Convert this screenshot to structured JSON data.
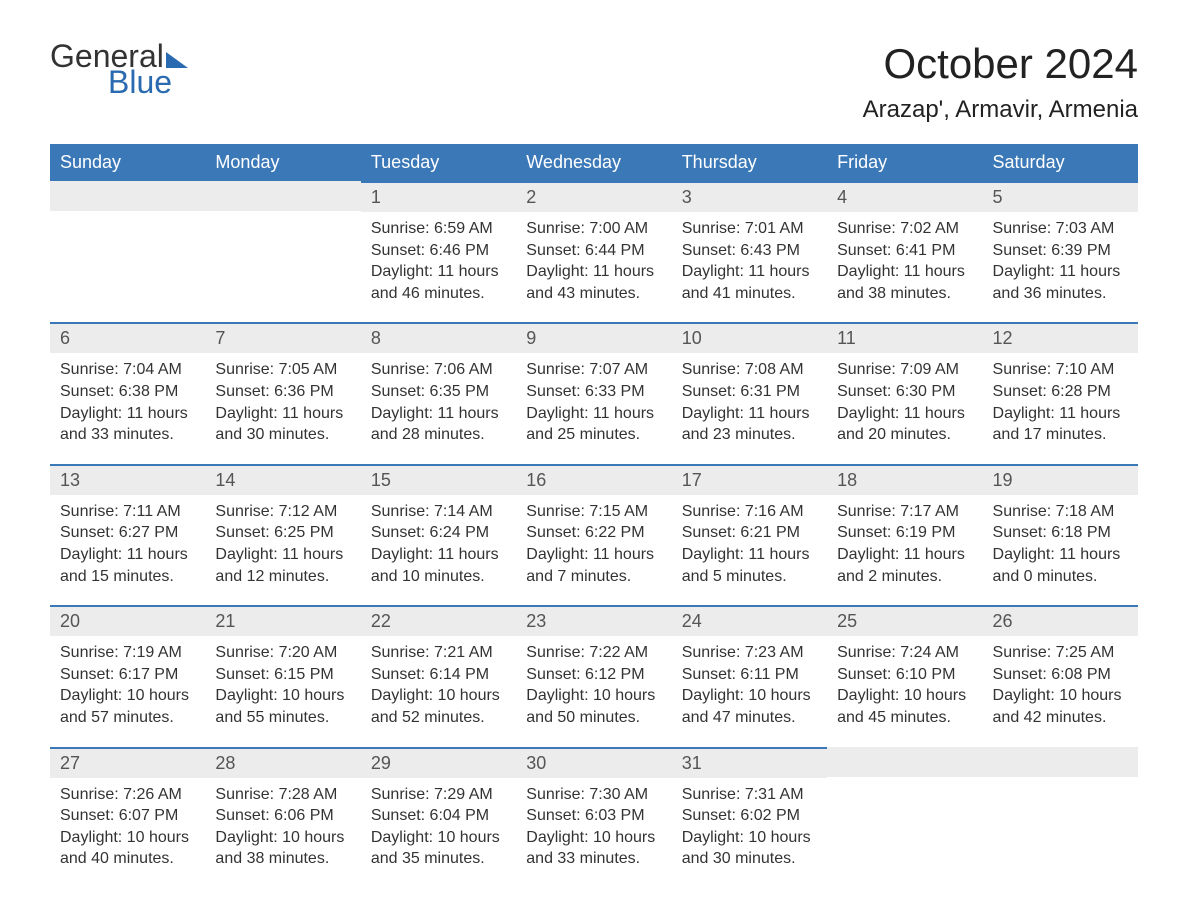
{
  "logo": {
    "word1": "General",
    "word2": "Blue"
  },
  "title": "October 2024",
  "location": "Arazap', Armavir, Armenia",
  "colors": {
    "accent": "#3b78b8",
    "header_bg": "#3b78b8",
    "header_text": "#ffffff",
    "daynum_bg": "#ececec",
    "daynum_text": "#555555",
    "body_text": "#333333",
    "background": "#ffffff"
  },
  "typography": {
    "title_fontsize": 42,
    "location_fontsize": 24,
    "header_fontsize": 18,
    "daynum_fontsize": 18,
    "body_fontsize": 16
  },
  "weekday_headers": [
    "Sunday",
    "Monday",
    "Tuesday",
    "Wednesday",
    "Thursday",
    "Friday",
    "Saturday"
  ],
  "weeks": [
    [
      null,
      null,
      {
        "n": "1",
        "sunrise": "Sunrise: 6:59 AM",
        "sunset": "Sunset: 6:46 PM",
        "dl1": "Daylight: 11 hours",
        "dl2": "and 46 minutes."
      },
      {
        "n": "2",
        "sunrise": "Sunrise: 7:00 AM",
        "sunset": "Sunset: 6:44 PM",
        "dl1": "Daylight: 11 hours",
        "dl2": "and 43 minutes."
      },
      {
        "n": "3",
        "sunrise": "Sunrise: 7:01 AM",
        "sunset": "Sunset: 6:43 PM",
        "dl1": "Daylight: 11 hours",
        "dl2": "and 41 minutes."
      },
      {
        "n": "4",
        "sunrise": "Sunrise: 7:02 AM",
        "sunset": "Sunset: 6:41 PM",
        "dl1": "Daylight: 11 hours",
        "dl2": "and 38 minutes."
      },
      {
        "n": "5",
        "sunrise": "Sunrise: 7:03 AM",
        "sunset": "Sunset: 6:39 PM",
        "dl1": "Daylight: 11 hours",
        "dl2": "and 36 minutes."
      }
    ],
    [
      {
        "n": "6",
        "sunrise": "Sunrise: 7:04 AM",
        "sunset": "Sunset: 6:38 PM",
        "dl1": "Daylight: 11 hours",
        "dl2": "and 33 minutes."
      },
      {
        "n": "7",
        "sunrise": "Sunrise: 7:05 AM",
        "sunset": "Sunset: 6:36 PM",
        "dl1": "Daylight: 11 hours",
        "dl2": "and 30 minutes."
      },
      {
        "n": "8",
        "sunrise": "Sunrise: 7:06 AM",
        "sunset": "Sunset: 6:35 PM",
        "dl1": "Daylight: 11 hours",
        "dl2": "and 28 minutes."
      },
      {
        "n": "9",
        "sunrise": "Sunrise: 7:07 AM",
        "sunset": "Sunset: 6:33 PM",
        "dl1": "Daylight: 11 hours",
        "dl2": "and 25 minutes."
      },
      {
        "n": "10",
        "sunrise": "Sunrise: 7:08 AM",
        "sunset": "Sunset: 6:31 PM",
        "dl1": "Daylight: 11 hours",
        "dl2": "and 23 minutes."
      },
      {
        "n": "11",
        "sunrise": "Sunrise: 7:09 AM",
        "sunset": "Sunset: 6:30 PM",
        "dl1": "Daylight: 11 hours",
        "dl2": "and 20 minutes."
      },
      {
        "n": "12",
        "sunrise": "Sunrise: 7:10 AM",
        "sunset": "Sunset: 6:28 PM",
        "dl1": "Daylight: 11 hours",
        "dl2": "and 17 minutes."
      }
    ],
    [
      {
        "n": "13",
        "sunrise": "Sunrise: 7:11 AM",
        "sunset": "Sunset: 6:27 PM",
        "dl1": "Daylight: 11 hours",
        "dl2": "and 15 minutes."
      },
      {
        "n": "14",
        "sunrise": "Sunrise: 7:12 AM",
        "sunset": "Sunset: 6:25 PM",
        "dl1": "Daylight: 11 hours",
        "dl2": "and 12 minutes."
      },
      {
        "n": "15",
        "sunrise": "Sunrise: 7:14 AM",
        "sunset": "Sunset: 6:24 PM",
        "dl1": "Daylight: 11 hours",
        "dl2": "and 10 minutes."
      },
      {
        "n": "16",
        "sunrise": "Sunrise: 7:15 AM",
        "sunset": "Sunset: 6:22 PM",
        "dl1": "Daylight: 11 hours",
        "dl2": "and 7 minutes."
      },
      {
        "n": "17",
        "sunrise": "Sunrise: 7:16 AM",
        "sunset": "Sunset: 6:21 PM",
        "dl1": "Daylight: 11 hours",
        "dl2": "and 5 minutes."
      },
      {
        "n": "18",
        "sunrise": "Sunrise: 7:17 AM",
        "sunset": "Sunset: 6:19 PM",
        "dl1": "Daylight: 11 hours",
        "dl2": "and 2 minutes."
      },
      {
        "n": "19",
        "sunrise": "Sunrise: 7:18 AM",
        "sunset": "Sunset: 6:18 PM",
        "dl1": "Daylight: 11 hours",
        "dl2": "and 0 minutes."
      }
    ],
    [
      {
        "n": "20",
        "sunrise": "Sunrise: 7:19 AM",
        "sunset": "Sunset: 6:17 PM",
        "dl1": "Daylight: 10 hours",
        "dl2": "and 57 minutes."
      },
      {
        "n": "21",
        "sunrise": "Sunrise: 7:20 AM",
        "sunset": "Sunset: 6:15 PM",
        "dl1": "Daylight: 10 hours",
        "dl2": "and 55 minutes."
      },
      {
        "n": "22",
        "sunrise": "Sunrise: 7:21 AM",
        "sunset": "Sunset: 6:14 PM",
        "dl1": "Daylight: 10 hours",
        "dl2": "and 52 minutes."
      },
      {
        "n": "23",
        "sunrise": "Sunrise: 7:22 AM",
        "sunset": "Sunset: 6:12 PM",
        "dl1": "Daylight: 10 hours",
        "dl2": "and 50 minutes."
      },
      {
        "n": "24",
        "sunrise": "Sunrise: 7:23 AM",
        "sunset": "Sunset: 6:11 PM",
        "dl1": "Daylight: 10 hours",
        "dl2": "and 47 minutes."
      },
      {
        "n": "25",
        "sunrise": "Sunrise: 7:24 AM",
        "sunset": "Sunset: 6:10 PM",
        "dl1": "Daylight: 10 hours",
        "dl2": "and 45 minutes."
      },
      {
        "n": "26",
        "sunrise": "Sunrise: 7:25 AM",
        "sunset": "Sunset: 6:08 PM",
        "dl1": "Daylight: 10 hours",
        "dl2": "and 42 minutes."
      }
    ],
    [
      {
        "n": "27",
        "sunrise": "Sunrise: 7:26 AM",
        "sunset": "Sunset: 6:07 PM",
        "dl1": "Daylight: 10 hours",
        "dl2": "and 40 minutes."
      },
      {
        "n": "28",
        "sunrise": "Sunrise: 7:28 AM",
        "sunset": "Sunset: 6:06 PM",
        "dl1": "Daylight: 10 hours",
        "dl2": "and 38 minutes."
      },
      {
        "n": "29",
        "sunrise": "Sunrise: 7:29 AM",
        "sunset": "Sunset: 6:04 PM",
        "dl1": "Daylight: 10 hours",
        "dl2": "and 35 minutes."
      },
      {
        "n": "30",
        "sunrise": "Sunrise: 7:30 AM",
        "sunset": "Sunset: 6:03 PM",
        "dl1": "Daylight: 10 hours",
        "dl2": "and 33 minutes."
      },
      {
        "n": "31",
        "sunrise": "Sunrise: 7:31 AM",
        "sunset": "Sunset: 6:02 PM",
        "dl1": "Daylight: 10 hours",
        "dl2": "and 30 minutes."
      },
      null,
      null
    ]
  ]
}
